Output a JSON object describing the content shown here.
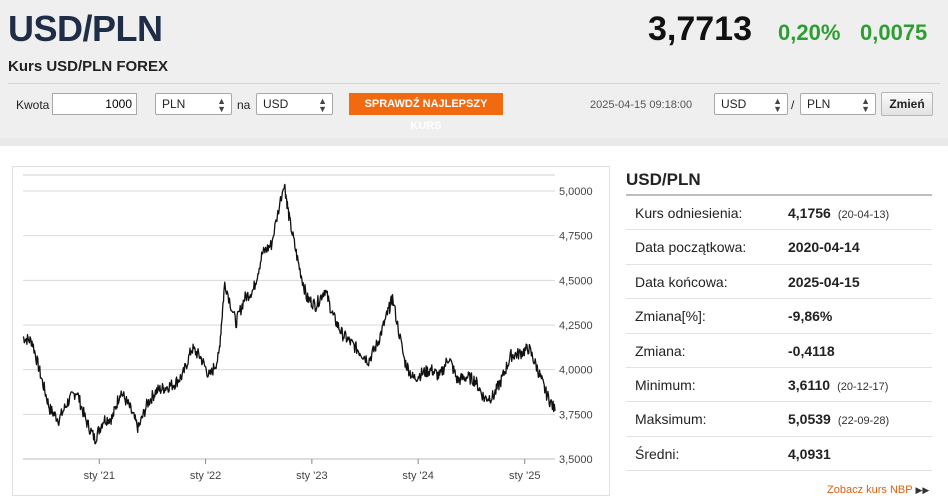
{
  "header": {
    "pair": "USD/PLN",
    "subtitle": "Kurs USD/PLN FOREX",
    "price": "3,7713",
    "change_pct": "0,20%",
    "change_abs": "0,0075"
  },
  "toolbar": {
    "amount_label": "Kwota",
    "amount_value": "1000",
    "from_currency": "PLN",
    "to_label": "na",
    "to_currency": "USD",
    "best_rate_button": "SPRAWDŹ NAJLEPSZY KURS",
    "timestamp": "2025-04-15 09:18:00",
    "pair_base": "USD",
    "pair_sep": "/",
    "pair_quote": "PLN",
    "change_button": "Zmień"
  },
  "side": {
    "title": "USD/PLN",
    "rows": [
      {
        "label": "Kurs odniesienia:",
        "value": "4,1756",
        "date": "(20-04-13)"
      },
      {
        "label": "Data początkowa:",
        "value": "2020-04-14",
        "date": ""
      },
      {
        "label": "Data końcowa:",
        "value": "2025-04-15",
        "date": ""
      },
      {
        "label": "Zmiana[%]:",
        "value": "-9,86%",
        "date": ""
      },
      {
        "label": "Zmiana:",
        "value": "-0,4118",
        "date": ""
      },
      {
        "label": "Minimum:",
        "value": "3,6110",
        "date": "(20-12-17)"
      },
      {
        "label": "Maksimum:",
        "value": "5,0539",
        "date": "(22-09-28)"
      },
      {
        "label": "Średni:",
        "value": "4,0931",
        "date": ""
      }
    ],
    "nbp_link": "Zobacz kurs NBP"
  },
  "colors": {
    "title": "#1f2d47",
    "positive": "#2e9e33",
    "accent_orange": "#f26a10"
  },
  "chart_data": {
    "type": "line",
    "ylim": [
      3.5,
      5.0
    ],
    "y_ticks": [
      "5,0000",
      "4,7500",
      "4,5000",
      "4,2500",
      "4,0000",
      "3,7500",
      "3,5000"
    ],
    "y_tick_values": [
      5.0,
      4.75,
      4.5,
      4.25,
      4.0,
      3.75,
      3.5
    ],
    "x_ticks": [
      "sty '21",
      "sty '22",
      "sty '23",
      "sty '24",
      "sty '25"
    ],
    "x_tick_dates": [
      "2021-01-01",
      "2022-01-01",
      "2023-01-01",
      "2024-01-01",
      "2025-01-01"
    ],
    "x_range": [
      "2020-04-14",
      "2025-04-15"
    ],
    "series": [
      {
        "x": [
          "2020-04-14",
          "2020-05-15",
          "2020-06-15",
          "2020-07-15",
          "2020-08-15",
          "2020-09-15",
          "2020-10-15",
          "2020-11-15",
          "2020-12-17",
          "2021-01-15",
          "2021-02-15",
          "2021-03-15",
          "2021-04-15",
          "2021-05-15",
          "2021-06-15",
          "2021-07-15",
          "2021-08-15",
          "2021-09-15",
          "2021-10-15",
          "2021-11-15",
          "2021-12-15",
          "2022-01-15",
          "2022-02-15",
          "2022-03-08",
          "2022-04-15",
          "2022-05-15",
          "2022-06-15",
          "2022-07-15",
          "2022-08-15",
          "2022-09-28",
          "2022-10-15",
          "2022-11-15",
          "2022-12-15",
          "2023-01-15",
          "2023-02-15",
          "2023-03-15",
          "2023-04-15",
          "2023-05-15",
          "2023-06-15",
          "2023-07-15",
          "2023-08-15",
          "2023-09-15",
          "2023-10-05",
          "2023-11-15",
          "2023-12-15",
          "2024-01-15",
          "2024-02-15",
          "2024-03-15",
          "2024-04-15",
          "2024-05-15",
          "2024-06-15",
          "2024-07-15",
          "2024-08-15",
          "2024-09-15",
          "2024-10-15",
          "2024-11-15",
          "2024-12-15",
          "2025-01-15",
          "2025-02-15",
          "2025-03-15",
          "2025-04-15"
        ],
        "y": [
          4.18,
          4.16,
          3.96,
          3.78,
          3.72,
          3.82,
          3.88,
          3.72,
          3.61,
          3.72,
          3.73,
          3.88,
          3.79,
          3.67,
          3.81,
          3.88,
          3.9,
          3.92,
          3.97,
          4.12,
          4.07,
          3.96,
          4.07,
          4.49,
          4.26,
          4.4,
          4.45,
          4.65,
          4.7,
          5.05,
          4.85,
          4.6,
          4.4,
          4.36,
          4.45,
          4.3,
          4.2,
          4.15,
          4.1,
          4.05,
          4.15,
          4.3,
          4.4,
          4.05,
          3.95,
          3.98,
          4.0,
          3.96,
          4.07,
          3.94,
          3.96,
          3.94,
          3.84,
          3.85,
          3.95,
          4.08,
          4.09,
          4.12,
          4.0,
          3.87,
          3.77
        ]
      }
    ]
  }
}
